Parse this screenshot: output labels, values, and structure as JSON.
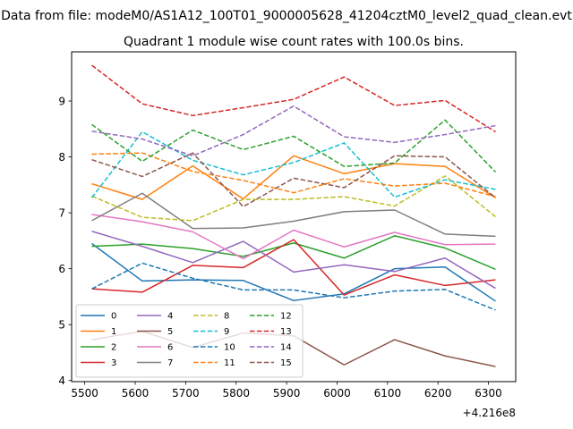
{
  "figure": {
    "suptitle": "Data from file: modeM0/AS1A12_100T01_9000005628_41204cztM0_level2_quad_clean.evt",
    "offset_text": "+4.216e8"
  },
  "chart_data": {
    "type": "line",
    "title": "Quadrant 1 module wise count rates with 100.0s bins.",
    "xlabel": "",
    "ylabel": "",
    "x_offset": 421600000,
    "x": [
      5514,
      5614,
      5714,
      5814,
      5914,
      6014,
      6114,
      6214,
      6314
    ],
    "xlim": [
      5474,
      6354
    ],
    "ylim": [
      3.98,
      9.88
    ],
    "x_ticks": [
      5500,
      5600,
      5700,
      5800,
      5900,
      6000,
      6100,
      6200,
      6300
    ],
    "y_ticks": [
      4,
      5,
      6,
      7,
      8,
      9
    ],
    "grid": false,
    "legend_placement": "lower-left",
    "legend_columns": 4,
    "series": [
      {
        "name": "0",
        "color": "#1f77b4",
        "dash": "solid",
        "values": [
          6.45,
          5.78,
          5.8,
          5.79,
          5.43,
          5.55,
          6.0,
          6.03,
          5.42
        ]
      },
      {
        "name": "1",
        "color": "#ff7f0e",
        "dash": "solid",
        "values": [
          7.52,
          7.24,
          7.84,
          7.25,
          8.02,
          7.7,
          7.88,
          7.83,
          7.27
        ]
      },
      {
        "name": "2",
        "color": "#2ca02c",
        "dash": "solid",
        "values": [
          6.4,
          6.44,
          6.36,
          6.22,
          6.46,
          6.19,
          6.59,
          6.37,
          5.99
        ]
      },
      {
        "name": "3",
        "color": "#d62728",
        "dash": "solid",
        "values": [
          5.64,
          5.58,
          6.06,
          6.02,
          6.52,
          5.53,
          5.89,
          5.7,
          5.8
        ]
      },
      {
        "name": "4",
        "color": "#9467bd",
        "dash": "solid",
        "values": [
          6.67,
          6.4,
          6.11,
          6.49,
          5.94,
          6.07,
          5.95,
          6.19,
          5.65
        ]
      },
      {
        "name": "5",
        "color": "#8c564b",
        "dash": "solid",
        "values": [
          4.73,
          4.88,
          4.59,
          4.85,
          4.8,
          4.28,
          4.73,
          4.44,
          4.25
        ]
      },
      {
        "name": "6",
        "color": "#e377c2",
        "dash": "solid",
        "values": [
          6.97,
          6.84,
          6.66,
          6.18,
          6.69,
          6.39,
          6.65,
          6.43,
          6.44
        ]
      },
      {
        "name": "7",
        "color": "#7f7f7f",
        "dash": "solid",
        "values": [
          6.86,
          7.35,
          6.72,
          6.73,
          6.85,
          7.02,
          7.05,
          6.62,
          6.58
        ]
      },
      {
        "name": "8",
        "color": "#bcbd22",
        "dash": "dashed",
        "values": [
          7.3,
          6.92,
          6.86,
          7.24,
          7.24,
          7.29,
          7.12,
          7.66,
          6.93
        ]
      },
      {
        "name": "9",
        "color": "#17becf",
        "dash": "dashed",
        "values": [
          7.27,
          8.45,
          7.94,
          7.68,
          7.9,
          8.25,
          7.28,
          7.59,
          7.42
        ]
      },
      {
        "name": "10",
        "color": "#1f77b4",
        "dash": "dashed",
        "values": [
          5.64,
          6.1,
          5.83,
          5.62,
          5.62,
          5.48,
          5.6,
          5.63,
          5.26
        ]
      },
      {
        "name": "11",
        "color": "#ff7f0e",
        "dash": "dashed",
        "values": [
          8.05,
          8.07,
          7.74,
          7.58,
          7.36,
          7.61,
          7.48,
          7.53,
          7.29
        ]
      },
      {
        "name": "12",
        "color": "#2ca02c",
        "dash": "dashed",
        "values": [
          8.58,
          7.92,
          8.48,
          8.13,
          8.37,
          7.83,
          7.89,
          8.66,
          7.73
        ]
      },
      {
        "name": "13",
        "color": "#d62728",
        "dash": "dashed",
        "values": [
          9.64,
          8.95,
          8.74,
          8.88,
          9.03,
          9.43,
          8.92,
          9.01,
          8.45
        ]
      },
      {
        "name": "14",
        "color": "#9467bd",
        "dash": "dashed",
        "values": [
          8.46,
          8.32,
          8.02,
          8.4,
          8.91,
          8.36,
          8.26,
          8.4,
          8.56
        ]
      },
      {
        "name": "15",
        "color": "#8c564b",
        "dash": "dashed",
        "values": [
          7.95,
          7.65,
          8.07,
          7.11,
          7.62,
          7.45,
          8.02,
          8.0,
          7.27
        ]
      }
    ]
  }
}
